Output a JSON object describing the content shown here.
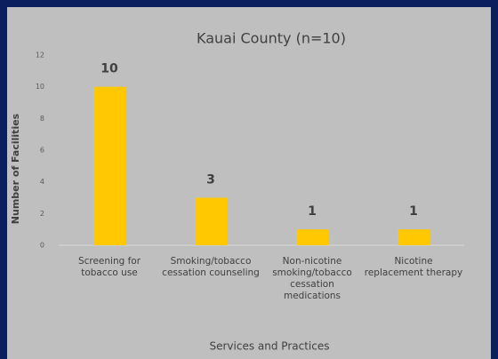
{
  "chart_data": {
    "type": "bar",
    "title": "Kauai County (n=10)",
    "categories": [
      "Screening for tobacco use",
      "Smoking/tobacco cessation counseling",
      "Non-nicotine smoking/tobacco cessation medications",
      "Nicotine replacement therapy"
    ],
    "values": [
      10,
      3,
      1,
      1
    ],
    "color": "#ffc800",
    "ylim": [
      0,
      12
    ],
    "yticks": [
      0,
      2,
      4,
      6,
      8,
      10,
      12
    ],
    "x_label": "Services and Practices",
    "y_label": "Number of Facilities",
    "grid": false
  }
}
